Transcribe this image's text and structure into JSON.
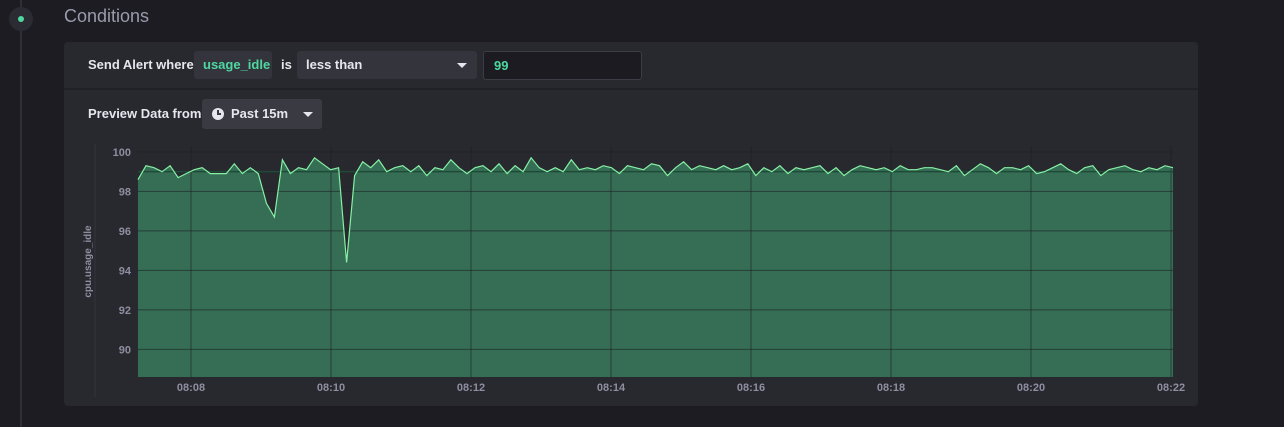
{
  "section": {
    "title": "Conditions"
  },
  "condition": {
    "send_alert_label": "Send Alert where",
    "field": "usage_idle",
    "is_label": "is",
    "operator": "less than",
    "value": "99"
  },
  "preview": {
    "label": "Preview Data from",
    "range": "Past 15m"
  },
  "colors": {
    "accent": "#4ed8a0",
    "area_fill": "#356e55",
    "line": "#86f0a4",
    "threshold": "#1f4a38"
  },
  "chart_data": {
    "type": "area",
    "ylabel": "cpu.usage_idle",
    "xlabel": "",
    "ylim": [
      88.6,
      100.3
    ],
    "yticks": [
      90,
      92,
      94,
      96,
      98,
      100
    ],
    "xticks": [
      "08:08",
      "08:10",
      "08:12",
      "08:14",
      "08:16",
      "08:18",
      "08:20",
      "08:22"
    ],
    "threshold": 99,
    "grid": true,
    "series": [
      {
        "values": [
          98.6,
          99.3,
          99.2,
          99.0,
          99.3,
          98.7,
          98.9,
          99.1,
          99.2,
          98.9,
          98.9,
          98.9,
          99.4,
          98.9,
          99.2,
          98.9,
          97.4,
          96.7,
          99.6,
          98.9,
          99.2,
          99.1,
          99.7,
          99.4,
          99.1,
          99.2,
          94.4,
          98.8,
          99.5,
          99.2,
          99.6,
          99.0,
          99.2,
          99.3,
          99.0,
          99.3,
          98.8,
          99.2,
          99.1,
          99.6,
          99.2,
          98.9,
          99.2,
          99.3,
          99.0,
          99.4,
          98.9,
          99.3,
          99.0,
          99.7,
          99.2,
          99.0,
          99.2,
          99.0,
          99.6,
          99.1,
          99.2,
          99.1,
          99.3,
          99.2,
          98.9,
          99.3,
          99.2,
          99.1,
          99.4,
          99.3,
          98.8,
          99.2,
          99.5,
          99.1,
          99.3,
          99.2,
          99.1,
          99.3,
          99.1,
          99.2,
          99.4,
          98.8,
          99.2,
          99.0,
          99.3,
          98.9,
          99.2,
          99.1,
          99.2,
          99.3,
          98.9,
          99.2,
          98.8,
          99.1,
          99.3,
          99.2,
          99.1,
          99.2,
          99.0,
          99.3,
          99.1,
          99.1,
          99.2,
          99.2,
          99.1,
          99.0,
          99.3,
          98.8,
          99.1,
          99.4,
          99.2,
          98.9,
          99.2,
          99.2,
          99.1,
          99.3,
          98.9,
          99.0,
          99.2,
          99.4,
          99.1,
          98.9,
          99.2,
          99.3,
          98.8,
          99.1,
          99.2,
          99.3,
          99.1,
          99.0,
          99.2,
          99.1,
          99.3,
          99.2
        ]
      }
    ]
  }
}
